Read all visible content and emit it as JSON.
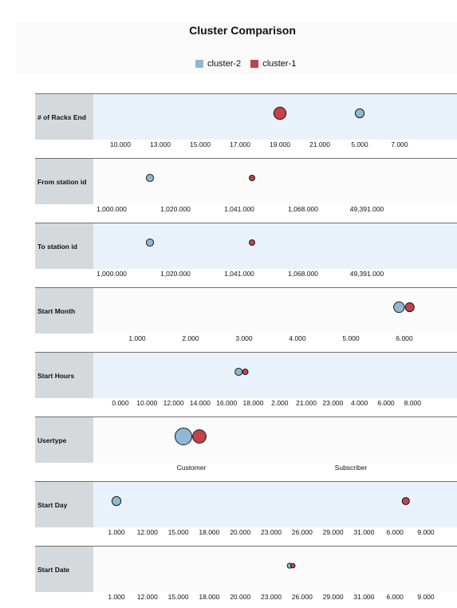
{
  "title": "Cluster Comparison",
  "colors": {
    "cluster-2": "#8fb8d4",
    "cluster-1": "#c0424b",
    "band_alt": "#e9f2fb",
    "band_plain": "#fbfbfb",
    "label_bg": "#d6d9dc"
  },
  "legend": [
    {
      "name": "cluster-2",
      "color": "#8fb8d4"
    },
    {
      "name": "cluster-1",
      "color": "#c0424b"
    }
  ],
  "chart_data": {
    "type": "scatter",
    "title": "Cluster Comparison",
    "series": [
      {
        "name": "cluster-2"
      },
      {
        "name": "cluster-1"
      }
    ],
    "panels": [
      {
        "label": "# of Racks End",
        "ticks": [
          "10.000",
          "13.000",
          "15.000",
          "17.000",
          "19.000",
          "21.000",
          "5.000",
          "7.000"
        ],
        "points": [
          {
            "series": "cluster-1",
            "pos": 4.0,
            "size": 2.2
          },
          {
            "series": "cluster-2",
            "pos": 6.0,
            "size": 1.6
          }
        ]
      },
      {
        "label": "From station id",
        "ticks": [
          "1,000.000",
          "1,020.000",
          "1,041.000",
          "1,068.000",
          "49,391.000"
        ],
        "points": [
          {
            "series": "cluster-2",
            "pos": 0.6,
            "size": 1.3
          },
          {
            "series": "cluster-1",
            "pos": 2.2,
            "size": 1.0
          }
        ]
      },
      {
        "label": "To station id",
        "ticks": [
          "1,000.000",
          "1,020.000",
          "1,041.000",
          "1,068.000",
          "49,391.000"
        ],
        "points": [
          {
            "series": "cluster-2",
            "pos": 0.6,
            "size": 1.3
          },
          {
            "series": "cluster-1",
            "pos": 2.2,
            "size": 1.0
          }
        ]
      },
      {
        "label": "Start Month",
        "ticks": [
          "1.000",
          "2.000",
          "3.000",
          "4.000",
          "5.000",
          "6.000"
        ],
        "points": [
          {
            "series": "cluster-2",
            "pos": 4.9,
            "size": 1.9
          },
          {
            "series": "cluster-1",
            "pos": 5.1,
            "size": 1.6
          }
        ]
      },
      {
        "label": "Start Hours",
        "ticks": [
          "0.000",
          "10.000",
          "12.000",
          "14.000",
          "16.000",
          "18.000",
          "2.000",
          "21.000",
          "23.000",
          "4.000",
          "6.000",
          "8.000"
        ],
        "points": [
          {
            "series": "cluster-2",
            "pos": 4.45,
            "size": 1.3
          },
          {
            "series": "cluster-1",
            "pos": 4.7,
            "size": 1.0
          }
        ]
      },
      {
        "label": "Usertype",
        "ticks": [
          "Customer",
          "Subscriber"
        ],
        "points": [
          {
            "series": "cluster-2",
            "pos": -0.05,
            "size": 3.0
          },
          {
            "series": "cluster-1",
            "pos": 0.05,
            "size": 2.4
          }
        ]
      },
      {
        "label": "Start Day",
        "ticks": [
          "1.000",
          "12.000",
          "15.000",
          "18.000",
          "20.000",
          "23.000",
          "26.000",
          "29.000",
          "31.000",
          "6.000",
          "9.000"
        ],
        "points": [
          {
            "series": "cluster-2",
            "pos": 0.0,
            "size": 1.6
          },
          {
            "series": "cluster-1",
            "pos": 9.35,
            "size": 1.3
          }
        ]
      },
      {
        "label": "Start Date",
        "ticks": [
          "1.000",
          "12.000",
          "15.000",
          "18.000",
          "20.000",
          "23.000",
          "26.000",
          "29.000",
          "31.000",
          "6.000",
          "9.000"
        ],
        "points": [
          {
            "series": "cluster-2",
            "pos": 5.6,
            "size": 0.9
          },
          {
            "series": "cluster-1",
            "pos": 5.7,
            "size": 0.8
          }
        ]
      }
    ]
  }
}
